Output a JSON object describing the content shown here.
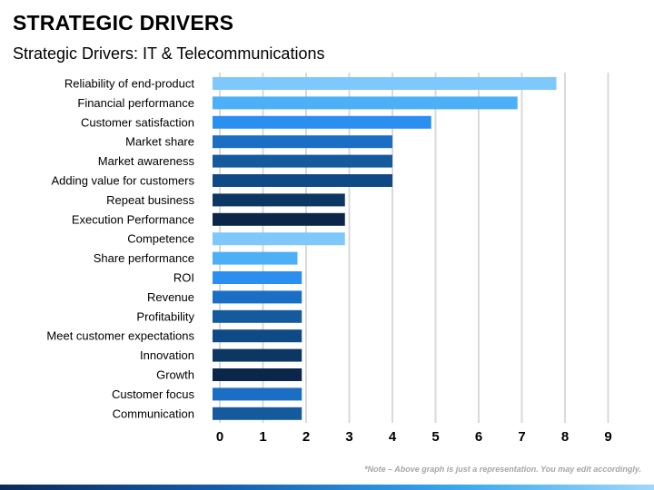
{
  "header": {
    "title": "STRATEGIC DRIVERS",
    "subtitle": "Strategic Drivers: IT & Telecommunications"
  },
  "note": "*Note – Above graph is just a representation. You may edit accordingly.",
  "chart_data": {
    "type": "bar",
    "orientation": "horizontal",
    "title": "",
    "xlabel": "",
    "ylabel": "",
    "xlim": [
      0,
      9
    ],
    "xticks": [
      0,
      1,
      2,
      3,
      4,
      5,
      6,
      7,
      8,
      9
    ],
    "grid": "vertical",
    "legend": "none",
    "categories": [
      "Reliability of end-product",
      "Financial performance",
      "Customer satisfaction",
      "Market share",
      "Market awareness",
      "Adding value for customers",
      "Repeat business",
      "Execution Performance",
      "Competence",
      "Share performance",
      "ROI",
      "Revenue",
      "Profitability",
      "Meet customer expectations",
      "Innovation",
      "Growth",
      "Customer focus",
      "Communication"
    ],
    "values": [
      7.8,
      6.9,
      4.9,
      4.0,
      4.0,
      4.0,
      2.9,
      2.9,
      2.9,
      1.8,
      1.9,
      1.9,
      1.9,
      1.9,
      1.9,
      1.9,
      1.9,
      1.9
    ],
    "colors": [
      "#7fc8fb",
      "#4db0f7",
      "#2b8fef",
      "#1a6fc4",
      "#165a9e",
      "#0f4a86",
      "#0d3763",
      "#0b2648",
      "#7fc8fb",
      "#4db0f7",
      "#2b8fef",
      "#1a6fc4",
      "#165a9e",
      "#0f4a86",
      "#0d3763",
      "#0b2648",
      "#1a6fc4",
      "#165a9e"
    ]
  }
}
